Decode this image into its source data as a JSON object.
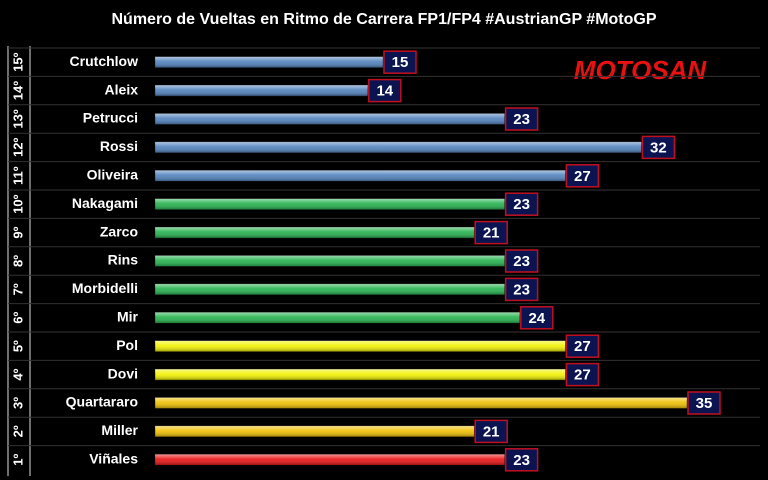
{
  "chart_data": {
    "type": "bar",
    "orientation": "horizontal",
    "title": "Número de Vueltas en Ritmo de Carrera FP1/FP4 #AustrianGP #MotoGP",
    "logo": "MOTOSAN",
    "ranks": [
      "15º",
      "14º",
      "13º",
      "12º",
      "11º",
      "10º",
      "9º",
      "8º",
      "7º",
      "6º",
      "5º",
      "4º",
      "3º",
      "2º",
      "1º"
    ],
    "categories": [
      "Crutchlow",
      "Aleix",
      "Petrucci",
      "Rossi",
      "Oliveira",
      "Nakagami",
      "Zarco",
      "Rins",
      "Morbidelli",
      "Mir",
      "Pol",
      "Dovi",
      "Quartararo",
      "Miller",
      "Viñales"
    ],
    "values": [
      15,
      14,
      23,
      32,
      27,
      23,
      21,
      23,
      23,
      24,
      27,
      27,
      35,
      21,
      23
    ],
    "colors": [
      "#4f81bd",
      "#4f81bd",
      "#4f81bd",
      "#4f81bd",
      "#4f81bd",
      "#22b14c",
      "#22b14c",
      "#22b14c",
      "#22b14c",
      "#22b14c",
      "#f2f200",
      "#f2f200",
      "#f0c000",
      "#f0c000",
      "#e81010"
    ]
  }
}
